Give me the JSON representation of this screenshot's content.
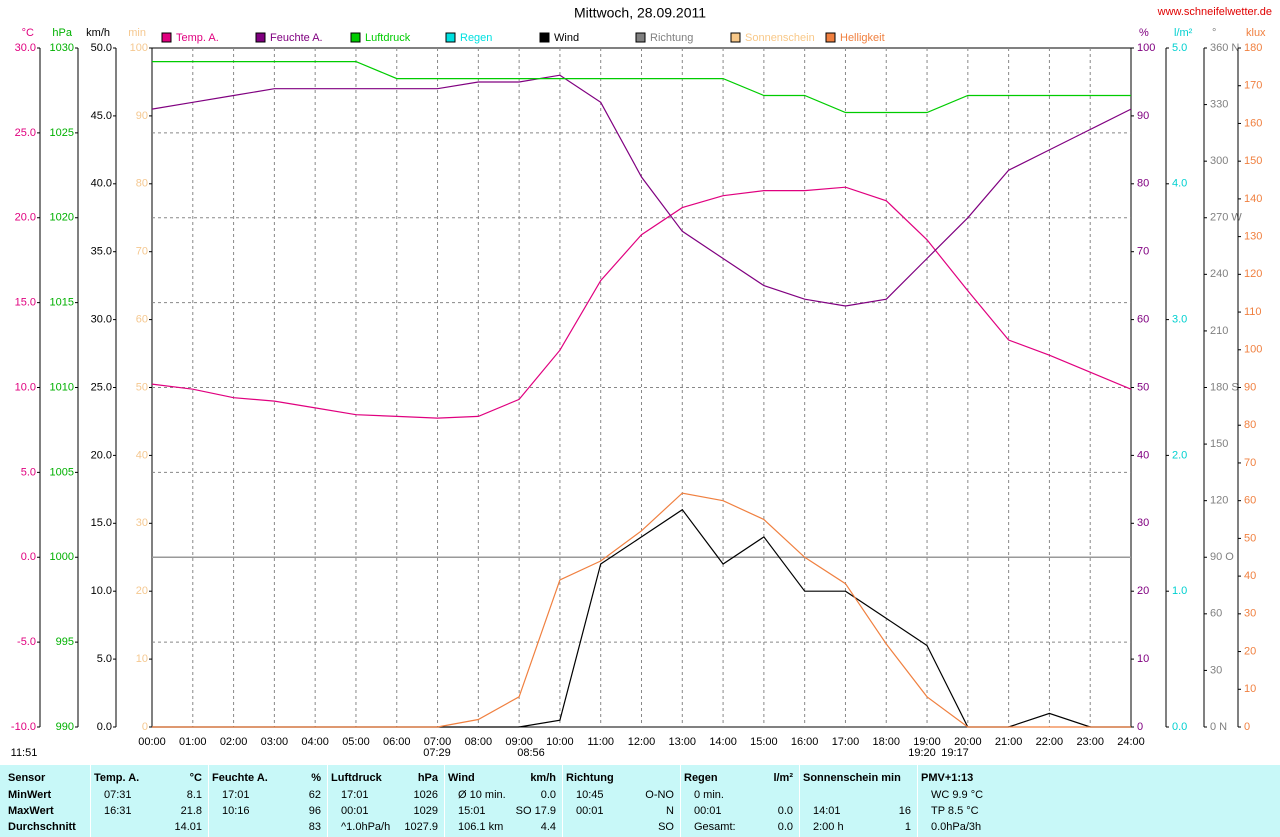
{
  "header": {
    "title": "Mittwoch, 28.09.2011",
    "site": "www.schneifelwetter.de"
  },
  "chart_data": {
    "type": "line",
    "x": [
      "00:00",
      "01:00",
      "02:00",
      "03:00",
      "04:00",
      "05:00",
      "06:00",
      "07:00",
      "08:00",
      "09:00",
      "10:00",
      "11:00",
      "12:00",
      "13:00",
      "14:00",
      "15:00",
      "16:00",
      "17:00",
      "18:00",
      "19:00",
      "20:00",
      "21:00",
      "22:00",
      "23:00",
      "24:00"
    ],
    "axes": [
      {
        "unit": "°C",
        "color": "#e0007f",
        "side": "left",
        "lim": [
          -10,
          30
        ],
        "ticks": [
          {
            "value": -10,
            "label": "-10.0"
          },
          {
            "value": -5,
            "label": "-5.0"
          },
          {
            "value": 0,
            "label": "0.0"
          },
          {
            "value": 5,
            "label": "5.0"
          },
          {
            "value": 10,
            "label": "10.0"
          },
          {
            "value": 15,
            "label": "15.0"
          },
          {
            "value": 20,
            "label": "20.0"
          },
          {
            "value": 25,
            "label": "25.0"
          },
          {
            "value": 30,
            "label": "30.0"
          }
        ]
      },
      {
        "unit": "hPa",
        "color": "#00b000",
        "side": "left",
        "lim": [
          990,
          1030
        ],
        "ticks": [
          990,
          995,
          1000,
          1005,
          1010,
          1015,
          1020,
          1025,
          1030
        ]
      },
      {
        "unit": "km/h",
        "color": "#000000",
        "side": "left",
        "lim": [
          0,
          50
        ],
        "ticks": [
          {
            "value": 0,
            "label": "0.0"
          },
          {
            "value": 5,
            "label": "5.0"
          },
          {
            "value": 10,
            "label": "10.0"
          },
          {
            "value": 15,
            "label": "15.0"
          },
          {
            "value": 20,
            "label": "20.0"
          },
          {
            "value": 25,
            "label": "25.0"
          },
          {
            "value": 30,
            "label": "30.0"
          },
          {
            "value": 35,
            "label": "35.0"
          },
          {
            "value": 40,
            "label": "40.0"
          },
          {
            "value": 45,
            "label": "45.0"
          },
          {
            "value": 50,
            "label": "50.0"
          }
        ]
      },
      {
        "unit": "min",
        "color": "#f5c890",
        "side": "left",
        "lim": [
          0,
          100
        ],
        "ticks": [
          0,
          10,
          20,
          30,
          40,
          50,
          60,
          70,
          80,
          90,
          100
        ]
      },
      {
        "unit": "%",
        "color": "#800080",
        "side": "right",
        "lim": [
          0,
          100
        ],
        "ticks": [
          0,
          10,
          20,
          30,
          40,
          50,
          60,
          70,
          80,
          90,
          100
        ]
      },
      {
        "unit": "l/m²",
        "color": "#00d0d0",
        "side": "right",
        "lim": [
          0,
          5
        ],
        "ticks": [
          {
            "value": 0,
            "label": "0.0"
          },
          {
            "value": 1,
            "label": "1.0"
          },
          {
            "value": 2,
            "label": "2.0"
          },
          {
            "value": 3,
            "label": "3.0"
          },
          {
            "value": 4,
            "label": "4.0"
          },
          {
            "value": 5,
            "label": "5.0"
          }
        ]
      },
      {
        "unit": "°",
        "color": "#808080",
        "side": "right",
        "lim": [
          0,
          360
        ],
        "ticks": [
          {
            "value": 0,
            "label": "0 N"
          },
          30,
          60,
          {
            "value": 90,
            "label": "90 O"
          },
          120,
          150,
          {
            "value": 180,
            "label": "180 S"
          },
          210,
          240,
          {
            "value": 270,
            "label": "270 W"
          },
          300,
          330,
          {
            "value": 360,
            "label": "360 N"
          }
        ]
      },
      {
        "unit": "klux",
        "color": "#f08040",
        "side": "right",
        "lim": [
          0,
          180
        ],
        "ticks": [
          0,
          10,
          20,
          30,
          40,
          50,
          60,
          70,
          80,
          90,
          100,
          110,
          120,
          130,
          140,
          150,
          160,
          170,
          180
        ]
      }
    ],
    "series": [
      {
        "name": "Temp. A.",
        "color": "#e0007f",
        "axis": 0,
        "values": [
          10.2,
          9.9,
          9.4,
          9.2,
          8.8,
          8.4,
          8.3,
          8.2,
          8.3,
          9.3,
          12.2,
          16.3,
          19.0,
          20.6,
          21.3,
          21.6,
          21.6,
          21.8,
          21.0,
          18.7,
          15.7,
          12.8,
          11.9,
          10.9,
          9.9
        ]
      },
      {
        "name": "Feuchte A.",
        "color": "#800080",
        "axis": 4,
        "values": [
          91,
          92,
          93,
          94,
          94,
          94,
          94,
          94,
          95,
          95,
          96,
          92,
          81,
          73,
          69,
          65,
          63,
          62,
          63,
          69,
          75,
          82,
          85,
          88,
          91
        ]
      },
      {
        "name": "Luftdruck",
        "color": "#00cc00",
        "axis": 1,
        "values": [
          1029.2,
          1029.2,
          1029.2,
          1029.2,
          1029.2,
          1029.2,
          1028.2,
          1028.2,
          1028.2,
          1028.2,
          1028.2,
          1028.2,
          1028.2,
          1028.2,
          1028.2,
          1027.2,
          1027.2,
          1026.2,
          1026.2,
          1026.2,
          1027.2,
          1027.2,
          1027.2,
          1027.2,
          1027.2
        ]
      },
      {
        "name": "Regen",
        "color": "#00e0e0"
      },
      {
        "name": "Wind",
        "color": "#000000",
        "axis": 2,
        "values": [
          0,
          0,
          0,
          0,
          0,
          0,
          0,
          0,
          0,
          0,
          0.5,
          12,
          14,
          16,
          12,
          14,
          10,
          10,
          8,
          6,
          0,
          0,
          1,
          0,
          0
        ]
      },
      {
        "name": "Richtung",
        "color": "#808080"
      },
      {
        "name": "Sonnenschein",
        "color": "#f8c888"
      },
      {
        "name": "Helligkeit",
        "color": "#f08040",
        "axis": 7,
        "values": [
          0,
          0,
          0,
          0,
          0,
          0,
          0,
          0,
          2,
          8,
          39,
          44,
          52,
          62,
          60,
          55,
          45,
          38,
          22,
          8,
          0,
          0,
          0,
          0,
          0
        ]
      }
    ],
    "annotations": [
      "07:29",
      "08:56",
      "19:20",
      "19:17",
      "11:51"
    ]
  },
  "table": {
    "columns": [
      {
        "header": "Sensor",
        "rows": [
          {
            "left": "MinWert"
          },
          {
            "left": "MaxWert"
          },
          {
            "left": "Durchschnitt"
          }
        ]
      },
      {
        "header": "Temp. A.",
        "unit": "°C",
        "rows": [
          {
            "left": "07:31",
            "right": "8.1"
          },
          {
            "left": "16:31",
            "right": "21.8"
          },
          {
            "right": "14.01"
          }
        ]
      },
      {
        "header": "Feuchte A.",
        "unit": "%",
        "rows": [
          {
            "left": "17:01",
            "right": "62"
          },
          {
            "left": "10:16",
            "right": "96"
          },
          {
            "right": "83"
          }
        ]
      },
      {
        "header": "Luftdruck",
        "unit": "hPa",
        "rows": [
          {
            "left": "17:01",
            "right": "1026"
          },
          {
            "left": "00:01",
            "right": "1029"
          },
          {
            "left": "^1.0hPa/h",
            "right": "1027.9"
          }
        ]
      },
      {
        "header": "Wind",
        "unit": "km/h",
        "rows": [
          {
            "left": "Ø 10 min.",
            "right": "0.0"
          },
          {
            "left": "15:01",
            "right": "SO 17.9"
          },
          {
            "left": "106.1 km",
            "right": "4.4"
          }
        ]
      },
      {
        "header": "Richtung",
        "rows": [
          {
            "left": "10:45",
            "right": "O-NO"
          },
          {
            "left": "00:01",
            "right": "N"
          },
          {
            "right": "SO"
          }
        ]
      },
      {
        "header": "Regen",
        "unit": "l/m²",
        "rows": [
          {
            "left": "0 min."
          },
          {
            "left": "00:01",
            "right": "0.0"
          },
          {
            "left": "Gesamt:",
            "right": "0.0"
          }
        ]
      },
      {
        "header": "Sonnenschein min",
        "rows": [
          {},
          {
            "left": "14:01",
            "right": "16"
          },
          {
            "left": "2:00 h",
            "right": "1"
          }
        ]
      },
      {
        "header": "PMV+1:13",
        "rows": [
          {
            "left": "WC 9.9 °C"
          },
          {
            "left": "TP 8.5 °C"
          },
          {
            "left": "0.0hPa/3h"
          }
        ]
      }
    ]
  }
}
